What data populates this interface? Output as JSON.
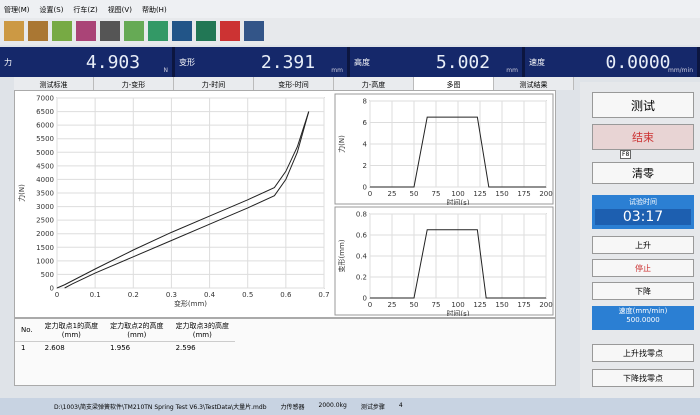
{
  "menu": [
    "管理(M)",
    "设置(S)",
    "行车(Z)",
    "视图(V)",
    "帮助(H)"
  ],
  "readouts": [
    {
      "label": "力",
      "value": "4.903",
      "unit": "N"
    },
    {
      "label": "变形",
      "value": "2.391",
      "unit": "mm"
    },
    {
      "label": "高度",
      "value": "5.002",
      "unit": "mm"
    },
    {
      "label": "速度",
      "value": "0.0000",
      "unit": "mm/min"
    }
  ],
  "tabs": [
    "测试标准",
    "力-变形",
    "力-时间",
    "变形-时间",
    "力-高度",
    "多图",
    "测试结果"
  ],
  "charts": [
    {
      "type": "line",
      "x_label": "变形(mm)",
      "y_label": "力(N)",
      "xlim": [
        0,
        0.7
      ],
      "ylim": [
        0,
        7000
      ],
      "xticks": [
        0,
        0.1,
        0.2,
        0.3,
        0.4,
        0.5,
        0.6,
        0.7
      ],
      "yticks": [
        0,
        500,
        1000,
        1500,
        2000,
        2500,
        3000,
        3500,
        4000,
        4500,
        5000,
        5500,
        6000,
        6500,
        7000
      ],
      "series": [
        {
          "color": "#222",
          "x": [
            0,
            0.02,
            0.1,
            0.2,
            0.3,
            0.4,
            0.5,
            0.57,
            0.6,
            0.63,
            0.66
          ],
          "values": [
            0,
            120,
            700,
            1400,
            2050,
            2650,
            3250,
            3700,
            4300,
            5200,
            6500
          ]
        },
        {
          "color": "#222",
          "x": [
            0.66,
            0.63,
            0.6,
            0.57,
            0.5,
            0.4,
            0.3,
            0.2,
            0.1,
            0.04,
            0.02
          ],
          "values": [
            6500,
            5000,
            4000,
            3400,
            2950,
            2350,
            1750,
            1150,
            550,
            150,
            0
          ]
        }
      ]
    },
    {
      "type": "line",
      "x_label": "时间(s)",
      "y_label": "力(N)",
      "xlim": [
        0,
        200
      ],
      "ylim": [
        0,
        8
      ],
      "xticks": [
        0,
        25,
        50,
        75,
        100,
        125,
        150,
        175,
        200
      ],
      "yticks": [
        0,
        2,
        4,
        6,
        8
      ],
      "series": [
        {
          "color": "#222",
          "x": [
            0,
            50,
            65,
            122,
            135,
            200
          ],
          "values": [
            0,
            0,
            6.5,
            6.5,
            0,
            0
          ]
        }
      ]
    },
    {
      "type": "line",
      "x_label": "时间(s)",
      "y_label": "变形(mm)",
      "xlim": [
        0,
        200
      ],
      "ylim": [
        0,
        0.8
      ],
      "xticks": [
        0,
        25,
        50,
        75,
        100,
        125,
        150,
        175,
        200
      ],
      "yticks": [
        0,
        0.2,
        0.4,
        0.6,
        0.8
      ],
      "series": [
        {
          "color": "#222",
          "x": [
            0,
            50,
            65,
            122,
            132,
            200
          ],
          "values": [
            0,
            0,
            0.65,
            0.65,
            0,
            0
          ]
        }
      ]
    }
  ],
  "table": {
    "headers": [
      {
        "label": "No.",
        "unit": ""
      },
      {
        "label": "定力取点1的高度",
        "unit": "(mm)"
      },
      {
        "label": "定力取点2的高度",
        "unit": "(mm)"
      },
      {
        "label": "定力取点3的高度",
        "unit": "(mm)"
      }
    ],
    "rows": [
      [
        "1",
        "2.608",
        "1.956",
        "2.596"
      ]
    ]
  },
  "panel": {
    "test": "测试",
    "end": "结束",
    "f8": "F8",
    "zero": "清零",
    "time_label": "试验时间",
    "time": "03:17",
    "up": "上升",
    "stop": "停止",
    "down": "下降",
    "speed_label": "速度(mm/min)",
    "speed": "500.0000",
    "up_zero": "上升找零点",
    "down_zero": "下降找零点"
  },
  "status": [
    "D:\\1003\\简支梁弹簧软件\\TM210TN Spring Test V6.3\\TestData\\大量片.mdb",
    "力传感器",
    "2000.0kg",
    "测试步骤",
    "4"
  ]
}
